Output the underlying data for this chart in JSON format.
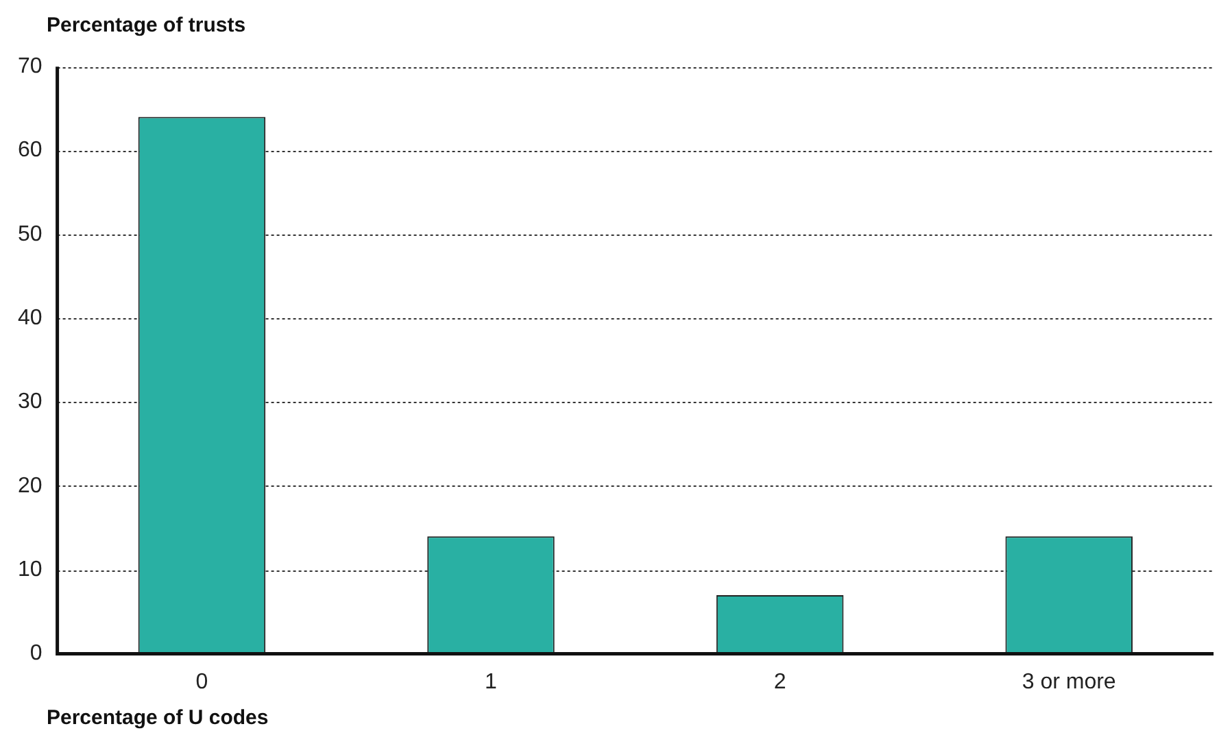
{
  "chart_data": {
    "type": "bar",
    "ylabel": "Percentage of trusts",
    "xlabel": "Percentage of U codes",
    "categories": [
      "0",
      "1",
      "2",
      "3 or more"
    ],
    "values": [
      64,
      14,
      7,
      14
    ],
    "color": "#29b0a3",
    "ylim": [
      0,
      70
    ],
    "yticks": [
      0,
      10,
      20,
      30,
      40,
      50,
      60,
      70
    ],
    "grid": "y",
    "legend": false
  }
}
